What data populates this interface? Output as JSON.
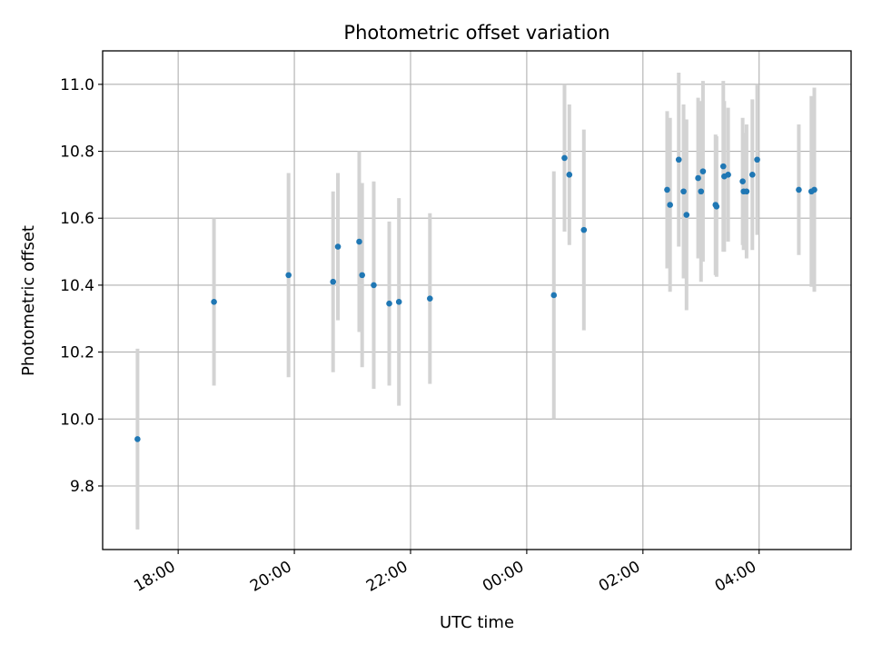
{
  "chart_data": {
    "type": "scatter",
    "title": "Photometric offset variation",
    "xlabel": "UTC time",
    "ylabel": "Photometric offset",
    "grid": true,
    "x_ticks": [
      "18:00",
      "20:00",
      "22:00",
      "00:00",
      "02:00",
      "04:00"
    ],
    "y_ticks": [
      "9.8",
      "10.0",
      "10.2",
      "10.4",
      "10.6",
      "10.8",
      "11.0"
    ],
    "xlim": [
      "16:42",
      "05:35"
    ],
    "ylim": [
      9.61,
      11.1
    ],
    "marker_color": "#1f77b4",
    "errorbar_color": "#d3d3d3",
    "series": [
      {
        "points": [
          {
            "x": "17:18",
            "y": 9.94,
            "err": 0.27
          },
          {
            "x": "18:37",
            "y": 10.35,
            "err": 0.25
          },
          {
            "x": "19:54",
            "y": 10.43,
            "err": 0.305
          },
          {
            "x": "20:40",
            "y": 10.41,
            "err": 0.27
          },
          {
            "x": "20:45",
            "y": 10.515,
            "err": 0.22
          },
          {
            "x": "21:07",
            "y": 10.53,
            "err": 0.27
          },
          {
            "x": "21:10",
            "y": 10.43,
            "err": 0.275
          },
          {
            "x": "21:22",
            "y": 10.4,
            "err": 0.31
          },
          {
            "x": "21:38",
            "y": 10.345,
            "err": 0.245
          },
          {
            "x": "21:48",
            "y": 10.35,
            "err": 0.31
          },
          {
            "x": "22:20",
            "y": 10.36,
            "err": 0.255
          },
          {
            "x": "00:28",
            "y": 10.37,
            "err": 0.37
          },
          {
            "x": "00:39",
            "y": 10.78,
            "err": 0.22
          },
          {
            "x": "00:44",
            "y": 10.73,
            "err": 0.21
          },
          {
            "x": "00:59",
            "y": 10.565,
            "err": 0.3
          },
          {
            "x": "02:25",
            "y": 10.685,
            "err": 0.235
          },
          {
            "x": "02:28",
            "y": 10.64,
            "err": 0.26
          },
          {
            "x": "02:37",
            "y": 10.775,
            "err": 0.26
          },
          {
            "x": "02:42",
            "y": 10.68,
            "err": 0.26
          },
          {
            "x": "02:45",
            "y": 10.61,
            "err": 0.285
          },
          {
            "x": "02:57",
            "y": 10.72,
            "err": 0.24
          },
          {
            "x": "03:00",
            "y": 10.68,
            "err": 0.27
          },
          {
            "x": "03:02",
            "y": 10.74,
            "err": 0.27
          },
          {
            "x": "03:15",
            "y": 10.64,
            "err": 0.21
          },
          {
            "x": "03:16",
            "y": 10.635,
            "err": 0.21
          },
          {
            "x": "03:23",
            "y": 10.755,
            "err": 0.255
          },
          {
            "x": "03:24",
            "y": 10.725,
            "err": 0.225
          },
          {
            "x": "03:28",
            "y": 10.73,
            "err": 0.2
          },
          {
            "x": "03:43",
            "y": 10.71,
            "err": 0.19
          },
          {
            "x": "03:44",
            "y": 10.68,
            "err": 0.175
          },
          {
            "x": "03:47",
            "y": 10.68,
            "err": 0.2
          },
          {
            "x": "03:53",
            "y": 10.73,
            "err": 0.225
          },
          {
            "x": "03:58",
            "y": 10.775,
            "err": 0.225
          },
          {
            "x": "04:41",
            "y": 10.685,
            "err": 0.195
          },
          {
            "x": "04:54",
            "y": 10.68,
            "err": 0.285
          },
          {
            "x": "04:57",
            "y": 10.685,
            "err": 0.305
          }
        ]
      }
    ]
  }
}
